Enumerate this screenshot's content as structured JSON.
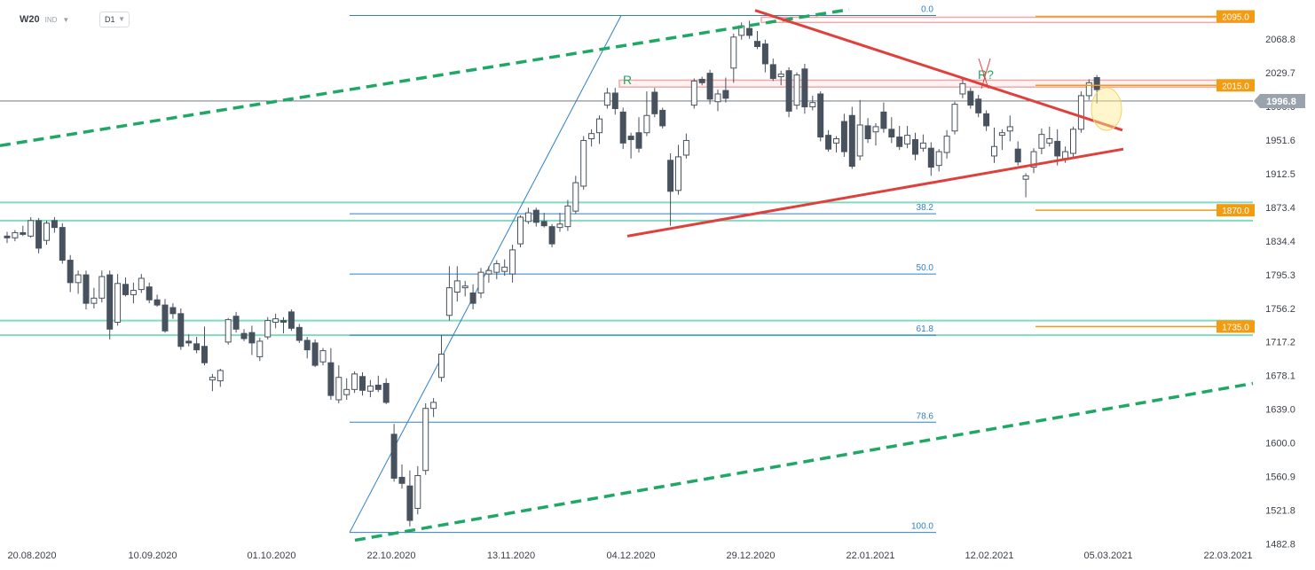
{
  "header": {
    "symbol": "W20",
    "instrument_type": "IND",
    "timeframe": "D1"
  },
  "colors": {
    "bull_candle": "#ffffff",
    "bear_candle": "#48525e",
    "candle_outline": "#48525e",
    "channel": "#1fa865",
    "triangle": "#e0403c",
    "fib": "#2f80c8",
    "support_resistance": "#7fdcc0",
    "resistance_zone": "#f6a6a6",
    "level_tag": "#f39c12",
    "last_price_tag": "#9aa3ad"
  },
  "chart_data": {
    "type": "candlestick",
    "title": "",
    "xlabel": "",
    "ylabel": "",
    "ylim": [
      1482.8,
      2090
    ],
    "x_tick_labels": [
      "20.08.2020",
      "10.09.2020",
      "01.10.2020",
      "22.10.2020",
      "13.11.2020",
      "04.12.2020",
      "29.12.2020",
      "22.01.2021",
      "12.02.2021",
      "05.03.2021",
      "22.03.2021"
    ],
    "y_ticks": [
      1482.8,
      1521.8,
      1560.9,
      1600.0,
      1639.0,
      1678.1,
      1717.2,
      1756.2,
      1795.3,
      1834.4,
      1873.4,
      1912.5,
      1951.6,
      1990.6,
      2029.7,
      2068.8
    ],
    "y_tick_labels": [
      "1482.8",
      "1521.8",
      "1560.9",
      "1600.0",
      "1639.0",
      "1678.1",
      "1717.2",
      "1756.2",
      "1795.3",
      "1834.4",
      "1873.4",
      "1912.5",
      "1951.6",
      "1990.6",
      "2029.7",
      "2068.8"
    ],
    "candles": [
      {
        "o": 1840,
        "h": 1845,
        "l": 1832,
        "c": 1838
      },
      {
        "o": 1838,
        "h": 1847,
        "l": 1834,
        "c": 1844
      },
      {
        "o": 1844,
        "h": 1852,
        "l": 1840,
        "c": 1842
      },
      {
        "o": 1840,
        "h": 1862,
        "l": 1838,
        "c": 1858
      },
      {
        "o": 1858,
        "h": 1861,
        "l": 1820,
        "c": 1826
      },
      {
        "o": 1835,
        "h": 1858,
        "l": 1830,
        "c": 1855
      },
      {
        "o": 1858,
        "h": 1862,
        "l": 1844,
        "c": 1850
      },
      {
        "o": 1850,
        "h": 1855,
        "l": 1808,
        "c": 1812
      },
      {
        "o": 1812,
        "h": 1818,
        "l": 1775,
        "c": 1786
      },
      {
        "o": 1786,
        "h": 1800,
        "l": 1773,
        "c": 1795
      },
      {
        "o": 1795,
        "h": 1800,
        "l": 1755,
        "c": 1762
      },
      {
        "o": 1762,
        "h": 1780,
        "l": 1756,
        "c": 1768
      },
      {
        "o": 1768,
        "h": 1800,
        "l": 1763,
        "c": 1793
      },
      {
        "o": 1795,
        "h": 1800,
        "l": 1720,
        "c": 1732
      },
      {
        "o": 1740,
        "h": 1796,
        "l": 1736,
        "c": 1785
      },
      {
        "o": 1784,
        "h": 1792,
        "l": 1770,
        "c": 1772
      },
      {
        "o": 1772,
        "h": 1786,
        "l": 1762,
        "c": 1777
      },
      {
        "o": 1778,
        "h": 1796,
        "l": 1774,
        "c": 1791
      },
      {
        "o": 1781,
        "h": 1786,
        "l": 1762,
        "c": 1766
      },
      {
        "o": 1766,
        "h": 1772,
        "l": 1758,
        "c": 1760
      },
      {
        "o": 1760,
        "h": 1767,
        "l": 1728,
        "c": 1730
      },
      {
        "o": 1757,
        "h": 1762,
        "l": 1744,
        "c": 1750
      },
      {
        "o": 1750,
        "h": 1756,
        "l": 1708,
        "c": 1712
      },
      {
        "o": 1718,
        "h": 1726,
        "l": 1712,
        "c": 1716
      },
      {
        "o": 1715,
        "h": 1723,
        "l": 1704,
        "c": 1708
      },
      {
        "o": 1712,
        "h": 1735,
        "l": 1690,
        "c": 1693
      },
      {
        "o": 1673,
        "h": 1680,
        "l": 1660,
        "c": 1676
      },
      {
        "o": 1672,
        "h": 1686,
        "l": 1665,
        "c": 1684
      },
      {
        "o": 1717,
        "h": 1745,
        "l": 1714,
        "c": 1743
      },
      {
        "o": 1747,
        "h": 1752,
        "l": 1728,
        "c": 1732
      },
      {
        "o": 1727,
        "h": 1732,
        "l": 1718,
        "c": 1721
      },
      {
        "o": 1728,
        "h": 1736,
        "l": 1702,
        "c": 1716
      },
      {
        "o": 1700,
        "h": 1722,
        "l": 1695,
        "c": 1718
      },
      {
        "o": 1723,
        "h": 1746,
        "l": 1720,
        "c": 1742
      },
      {
        "o": 1740,
        "h": 1750,
        "l": 1733,
        "c": 1744
      },
      {
        "o": 1742,
        "h": 1746,
        "l": 1727,
        "c": 1740
      },
      {
        "o": 1752,
        "h": 1755,
        "l": 1730,
        "c": 1733
      },
      {
        "o": 1734,
        "h": 1738,
        "l": 1716,
        "c": 1719
      },
      {
        "o": 1719,
        "h": 1723,
        "l": 1698,
        "c": 1708
      },
      {
        "o": 1716,
        "h": 1720,
        "l": 1688,
        "c": 1690
      },
      {
        "o": 1694,
        "h": 1710,
        "l": 1690,
        "c": 1707
      },
      {
        "o": 1693,
        "h": 1710,
        "l": 1650,
        "c": 1655
      },
      {
        "o": 1650,
        "h": 1690,
        "l": 1646,
        "c": 1676
      },
      {
        "o": 1656,
        "h": 1675,
        "l": 1650,
        "c": 1662
      },
      {
        "o": 1662,
        "h": 1683,
        "l": 1658,
        "c": 1680
      },
      {
        "o": 1677,
        "h": 1682,
        "l": 1655,
        "c": 1661
      },
      {
        "o": 1660,
        "h": 1673,
        "l": 1653,
        "c": 1666
      },
      {
        "o": 1667,
        "h": 1678,
        "l": 1659,
        "c": 1662
      },
      {
        "o": 1669,
        "h": 1675,
        "l": 1645,
        "c": 1647
      },
      {
        "o": 1610,
        "h": 1622,
        "l": 1555,
        "c": 1559
      },
      {
        "o": 1560,
        "h": 1575,
        "l": 1547,
        "c": 1553
      },
      {
        "o": 1550,
        "h": 1568,
        "l": 1503,
        "c": 1510
      },
      {
        "o": 1524,
        "h": 1573,
        "l": 1517,
        "c": 1562
      },
      {
        "o": 1568,
        "h": 1646,
        "l": 1563,
        "c": 1640
      },
      {
        "o": 1640,
        "h": 1652,
        "l": 1630,
        "c": 1647
      },
      {
        "o": 1676,
        "h": 1725,
        "l": 1671,
        "c": 1703
      },
      {
        "o": 1748,
        "h": 1805,
        "l": 1742,
        "c": 1780
      },
      {
        "o": 1775,
        "h": 1805,
        "l": 1764,
        "c": 1788
      },
      {
        "o": 1780,
        "h": 1788,
        "l": 1770,
        "c": 1782
      },
      {
        "o": 1774,
        "h": 1784,
        "l": 1755,
        "c": 1762
      },
      {
        "o": 1774,
        "h": 1803,
        "l": 1768,
        "c": 1798
      },
      {
        "o": 1796,
        "h": 1805,
        "l": 1786,
        "c": 1800
      },
      {
        "o": 1798,
        "h": 1812,
        "l": 1790,
        "c": 1808
      },
      {
        "o": 1799,
        "h": 1813,
        "l": 1794,
        "c": 1804
      },
      {
        "o": 1796,
        "h": 1830,
        "l": 1786,
        "c": 1824
      },
      {
        "o": 1831,
        "h": 1864,
        "l": 1827,
        "c": 1862
      },
      {
        "o": 1857,
        "h": 1873,
        "l": 1854,
        "c": 1867
      },
      {
        "o": 1870,
        "h": 1873,
        "l": 1851,
        "c": 1856
      },
      {
        "o": 1857,
        "h": 1867,
        "l": 1850,
        "c": 1852
      },
      {
        "o": 1851,
        "h": 1854,
        "l": 1827,
        "c": 1831
      },
      {
        "o": 1850,
        "h": 1867,
        "l": 1845,
        "c": 1854
      },
      {
        "o": 1851,
        "h": 1882,
        "l": 1846,
        "c": 1875
      },
      {
        "o": 1869,
        "h": 1910,
        "l": 1866,
        "c": 1902
      },
      {
        "o": 1898,
        "h": 1956,
        "l": 1894,
        "c": 1951
      },
      {
        "o": 1953,
        "h": 1964,
        "l": 1944,
        "c": 1959
      },
      {
        "o": 1960,
        "h": 1980,
        "l": 1947,
        "c": 1976
      },
      {
        "o": 1992,
        "h": 2012,
        "l": 1988,
        "c": 2006
      },
      {
        "o": 2006,
        "h": 2012,
        "l": 1981,
        "c": 1988
      },
      {
        "o": 1984,
        "h": 1989,
        "l": 1941,
        "c": 1948
      },
      {
        "o": 1956,
        "h": 1960,
        "l": 1930,
        "c": 1952
      },
      {
        "o": 1960,
        "h": 1978,
        "l": 1937,
        "c": 1942
      },
      {
        "o": 1960,
        "h": 2008,
        "l": 1956,
        "c": 1980
      },
      {
        "o": 2007,
        "h": 2012,
        "l": 1978,
        "c": 1982
      },
      {
        "o": 1986,
        "h": 1989,
        "l": 1965,
        "c": 1968
      },
      {
        "o": 1928,
        "h": 1936,
        "l": 1852,
        "c": 1892
      },
      {
        "o": 1893,
        "h": 1946,
        "l": 1888,
        "c": 1932
      },
      {
        "o": 1934,
        "h": 1959,
        "l": 1930,
        "c": 1951
      },
      {
        "o": 1992,
        "h": 2023,
        "l": 1988,
        "c": 2020
      },
      {
        "o": 2022,
        "h": 2025,
        "l": 2015,
        "c": 2018
      },
      {
        "o": 2029,
        "h": 2033,
        "l": 1993,
        "c": 1999
      },
      {
        "o": 1996,
        "h": 2010,
        "l": 1985,
        "c": 2005
      },
      {
        "o": 2009,
        "h": 2024,
        "l": 1995,
        "c": 2000
      },
      {
        "o": 2035,
        "h": 2075,
        "l": 2018,
        "c": 2071
      },
      {
        "o": 2073,
        "h": 2088,
        "l": 2068,
        "c": 2084
      },
      {
        "o": 2081,
        "h": 2090,
        "l": 2069,
        "c": 2073
      },
      {
        "o": 2066,
        "h": 2078,
        "l": 2057,
        "c": 2060
      },
      {
        "o": 2063,
        "h": 2068,
        "l": 2030,
        "c": 2040
      },
      {
        "o": 2039,
        "h": 2046,
        "l": 2020,
        "c": 2023
      },
      {
        "o": 2025,
        "h": 2032,
        "l": 2015,
        "c": 2028
      },
      {
        "o": 2032,
        "h": 2036,
        "l": 1978,
        "c": 1985
      },
      {
        "o": 1992,
        "h": 2030,
        "l": 1987,
        "c": 2027
      },
      {
        "o": 2034,
        "h": 2040,
        "l": 1982,
        "c": 1990
      },
      {
        "o": 1990,
        "h": 2003,
        "l": 1986,
        "c": 1995
      },
      {
        "o": 2005,
        "h": 2008,
        "l": 1950,
        "c": 1955
      },
      {
        "o": 1957,
        "h": 1963,
        "l": 1938,
        "c": 1941
      },
      {
        "o": 1948,
        "h": 1956,
        "l": 1937,
        "c": 1953
      },
      {
        "o": 1973,
        "h": 1982,
        "l": 1932,
        "c": 1938
      },
      {
        "o": 1980,
        "h": 1990,
        "l": 1918,
        "c": 1921
      },
      {
        "o": 1933,
        "h": 1998,
        "l": 1928,
        "c": 1969
      },
      {
        "o": 1968,
        "h": 1977,
        "l": 1948,
        "c": 1953
      },
      {
        "o": 1961,
        "h": 1971,
        "l": 1945,
        "c": 1967
      },
      {
        "o": 1984,
        "h": 1995,
        "l": 1960,
        "c": 1965
      },
      {
        "o": 1964,
        "h": 1978,
        "l": 1948,
        "c": 1955
      },
      {
        "o": 1955,
        "h": 1968,
        "l": 1940,
        "c": 1944
      },
      {
        "o": 1947,
        "h": 1968,
        "l": 1942,
        "c": 1957
      },
      {
        "o": 1952,
        "h": 1960,
        "l": 1928,
        "c": 1935
      },
      {
        "o": 1942,
        "h": 1958,
        "l": 1938,
        "c": 1948
      },
      {
        "o": 1942,
        "h": 1949,
        "l": 1910,
        "c": 1920
      },
      {
        "o": 1922,
        "h": 1941,
        "l": 1915,
        "c": 1938
      },
      {
        "o": 1937,
        "h": 1963,
        "l": 1930,
        "c": 1956
      },
      {
        "o": 1962,
        "h": 1996,
        "l": 1958,
        "c": 1993
      },
      {
        "o": 2005,
        "h": 2024,
        "l": 2000,
        "c": 2017
      },
      {
        "o": 2008,
        "h": 2012,
        "l": 1988,
        "c": 1992
      },
      {
        "o": 1999,
        "h": 2004,
        "l": 1978,
        "c": 1983
      },
      {
        "o": 1982,
        "h": 1986,
        "l": 1962,
        "c": 1968
      },
      {
        "o": 1933,
        "h": 1966,
        "l": 1925,
        "c": 1944
      },
      {
        "o": 1957,
        "h": 1964,
        "l": 1940,
        "c": 1960
      },
      {
        "o": 1962,
        "h": 1980,
        "l": 1950,
        "c": 1967
      },
      {
        "o": 1941,
        "h": 1950,
        "l": 1922,
        "c": 1926
      },
      {
        "o": 1906,
        "h": 1913,
        "l": 1885,
        "c": 1910
      },
      {
        "o": 1920,
        "h": 1942,
        "l": 1913,
        "c": 1938
      },
      {
        "o": 1942,
        "h": 1965,
        "l": 1935,
        "c": 1958
      },
      {
        "o": 1948,
        "h": 1967,
        "l": 1944,
        "c": 1953
      },
      {
        "o": 1950,
        "h": 1964,
        "l": 1922,
        "c": 1933
      },
      {
        "o": 1930,
        "h": 1944,
        "l": 1925,
        "c": 1938
      },
      {
        "o": 1936,
        "h": 1967,
        "l": 1930,
        "c": 1964
      },
      {
        "o": 1964,
        "h": 2008,
        "l": 1960,
        "c": 2003
      },
      {
        "o": 2003,
        "h": 2022,
        "l": 1998,
        "c": 2018
      },
      {
        "o": 2024,
        "h": 2027,
        "l": 1994,
        "c": 2010
      }
    ],
    "fib_levels": [
      {
        "label": "0.0",
        "value": 2096
      },
      {
        "label": "38.2",
        "value": 1866
      },
      {
        "label": "50.0",
        "value": 1796
      },
      {
        "label": "61.8",
        "value": 1725
      },
      {
        "label": "78.6",
        "value": 1624
      },
      {
        "label": "100.0",
        "value": 1496
      }
    ],
    "price_tags": [
      {
        "label": "2095.0",
        "value": 2095
      },
      {
        "label": "2015.0",
        "value": 2015
      },
      {
        "label": "1870.0",
        "value": 1870
      },
      {
        "label": "1735.0",
        "value": 1735
      }
    ],
    "last_price": {
      "label": "1996.8",
      "value": 1996.8
    },
    "annotations": [
      "R",
      "R?"
    ]
  }
}
